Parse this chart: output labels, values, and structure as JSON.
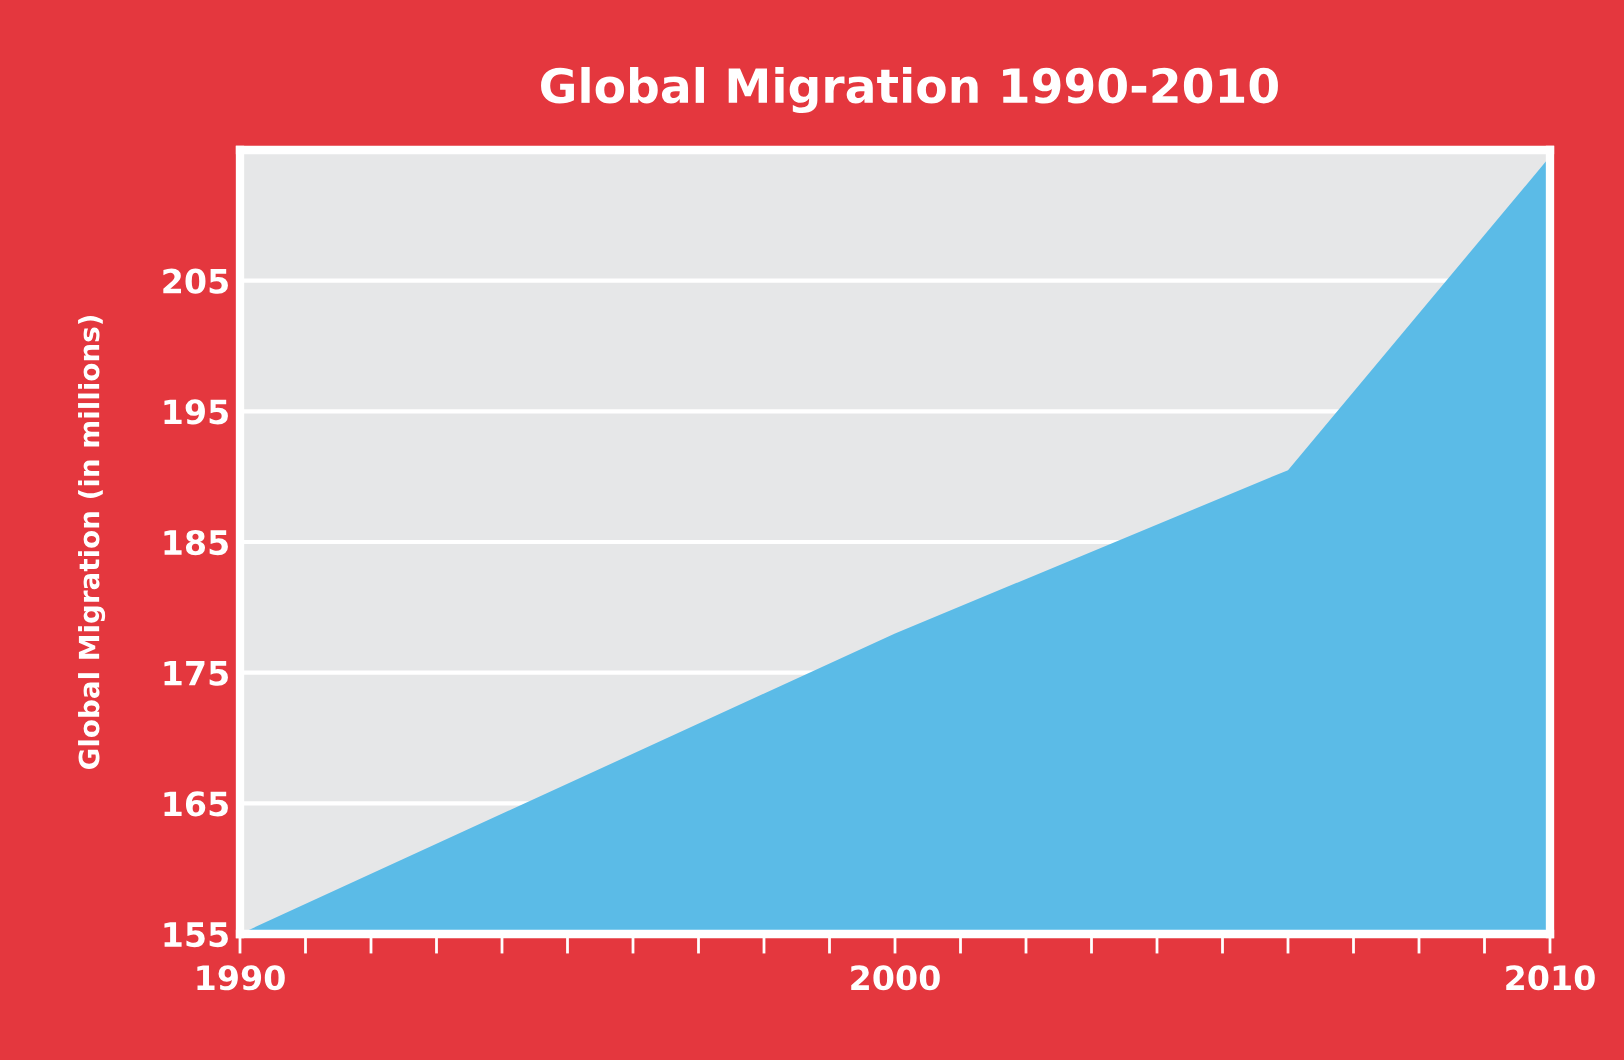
{
  "chart_data": {
    "type": "area",
    "title": "Global Migration 1990-2010",
    "ylabel": "Global Migration (in millions)",
    "x": [
      1990,
      2000,
      2006,
      2010
    ],
    "series": [
      {
        "color": "#5bbbe7",
        "values": [
          155,
          178,
          190.5,
          214.5
        ]
      }
    ],
    "xlim": [
      1990,
      2010
    ],
    "xticks": [
      1990,
      {
        "value": 1991,
        "label": null
      },
      {
        "value": 1992,
        "label": null
      },
      {
        "value": 1993,
        "label": null
      },
      {
        "value": 1994,
        "label": null
      },
      {
        "value": 1995,
        "label": null
      },
      {
        "value": 1996,
        "label": null
      },
      {
        "value": 1997,
        "label": null
      },
      {
        "value": 1998,
        "label": null
      },
      {
        "value": 1999,
        "label": null
      },
      2000,
      {
        "value": 2001,
        "label": null
      },
      {
        "value": 2002,
        "label": null
      },
      {
        "value": 2003,
        "label": null
      },
      {
        "value": 2004,
        "label": null
      },
      {
        "value": 2005,
        "label": null
      },
      {
        "value": 2006,
        "label": null
      },
      {
        "value": 2007,
        "label": null
      },
      {
        "value": 2008,
        "label": null
      },
      {
        "value": 2009,
        "label": null
      },
      2010
    ],
    "ylim": [
      155,
      215
    ],
    "yticks": [
      155,
      165,
      175,
      185,
      195,
      205
    ],
    "grid": "y"
  }
}
